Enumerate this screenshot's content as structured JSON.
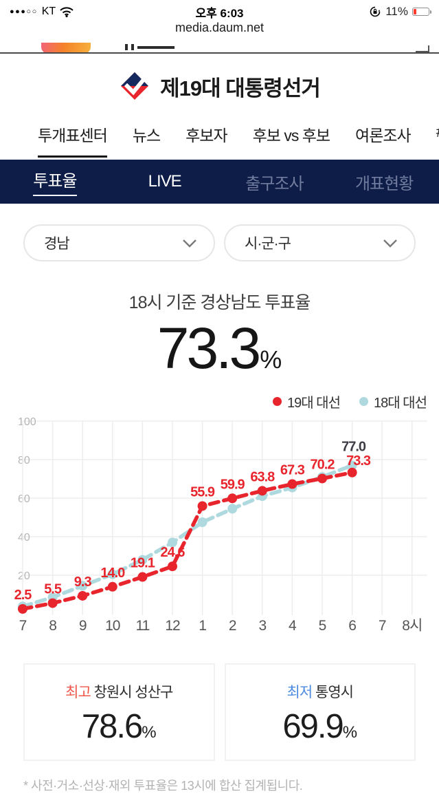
{
  "status_bar": {
    "signal": "●●●○○",
    "carrier": "KT",
    "time": "오후 6:03",
    "battery_percent": "11%"
  },
  "url_bar": {
    "url": "media.daum.net"
  },
  "site_header": {
    "title": "제19대 대통령선거"
  },
  "nav": {
    "items": [
      {
        "label": "투개표센터",
        "active": true
      },
      {
        "label": "뉴스",
        "active": false
      },
      {
        "label": "후보자",
        "active": false
      },
      {
        "label": "후보 vs 후보",
        "active": false
      },
      {
        "label": "여론조사",
        "active": false
      },
      {
        "label": "#",
        "active": false
      }
    ]
  },
  "subnav": {
    "items": [
      {
        "label": "투표율",
        "state": "active"
      },
      {
        "label": "LIVE",
        "state": "normal"
      },
      {
        "label": "출구조사",
        "state": "muted"
      },
      {
        "label": "개표현황",
        "state": "muted"
      }
    ]
  },
  "filters": {
    "region": {
      "value": "경남"
    },
    "district": {
      "value": "시·군·구"
    }
  },
  "summary": {
    "title": "18시 기준 경상남도 투표율",
    "value": "73.3",
    "unit": "%"
  },
  "legend": [
    {
      "label": "19대 대선",
      "color": "#e8252d"
    },
    {
      "label": "18대 대선",
      "color": "#aed9de"
    }
  ],
  "chart_data": {
    "type": "line",
    "x_labels": [
      "7",
      "8",
      "9",
      "10",
      "11",
      "12",
      "1",
      "2",
      "3",
      "4",
      "5",
      "6",
      "7",
      "8시"
    ],
    "ylim": [
      0,
      100
    ],
    "yticks": [
      20,
      40,
      60,
      80,
      100
    ],
    "grid": true,
    "legend_position": "top-right",
    "series": [
      {
        "name": "19대 대선",
        "color": "#e8252d",
        "label_color": "#e8252d",
        "values": [
          2.5,
          5.5,
          9.3,
          14.0,
          19.1,
          24.6,
          55.9,
          59.9,
          63.8,
          67.3,
          70.2,
          73.3
        ],
        "labels": [
          "2.5",
          "5.5",
          "9.3",
          "14.0",
          "19.1",
          "24.6",
          "55.9",
          "59.9",
          "63.8",
          "67.3",
          "70.2",
          "73.3"
        ]
      },
      {
        "name": "18대 대선",
        "color": "#aed9de",
        "label_color": "#3c3c44",
        "values": [
          3.8,
          8.5,
          14.5,
          20.5,
          28.0,
          37.0,
          47.5,
          54.5,
          61.0,
          65.5,
          71.0,
          77.0
        ],
        "labels": [
          null,
          null,
          null,
          null,
          null,
          null,
          null,
          null,
          null,
          null,
          null,
          "77.0"
        ]
      }
    ]
  },
  "stats": {
    "high": {
      "tag": "최고",
      "tag_color": "#f0574a",
      "name": "창원시 성산구",
      "value": "78.6",
      "unit": "%"
    },
    "low": {
      "tag": "최저",
      "tag_color": "#4c8be2",
      "name": "통영시",
      "value": "69.9",
      "unit": "%"
    }
  },
  "footnote": "* 사전·거소·선상·재외 투표율은 13시에 합산 집계됩니다.",
  "colors": {
    "navy": "#0e1d47",
    "grid": "#ededed",
    "axis_text": "#b5b5b5",
    "x_text": "#555555"
  }
}
